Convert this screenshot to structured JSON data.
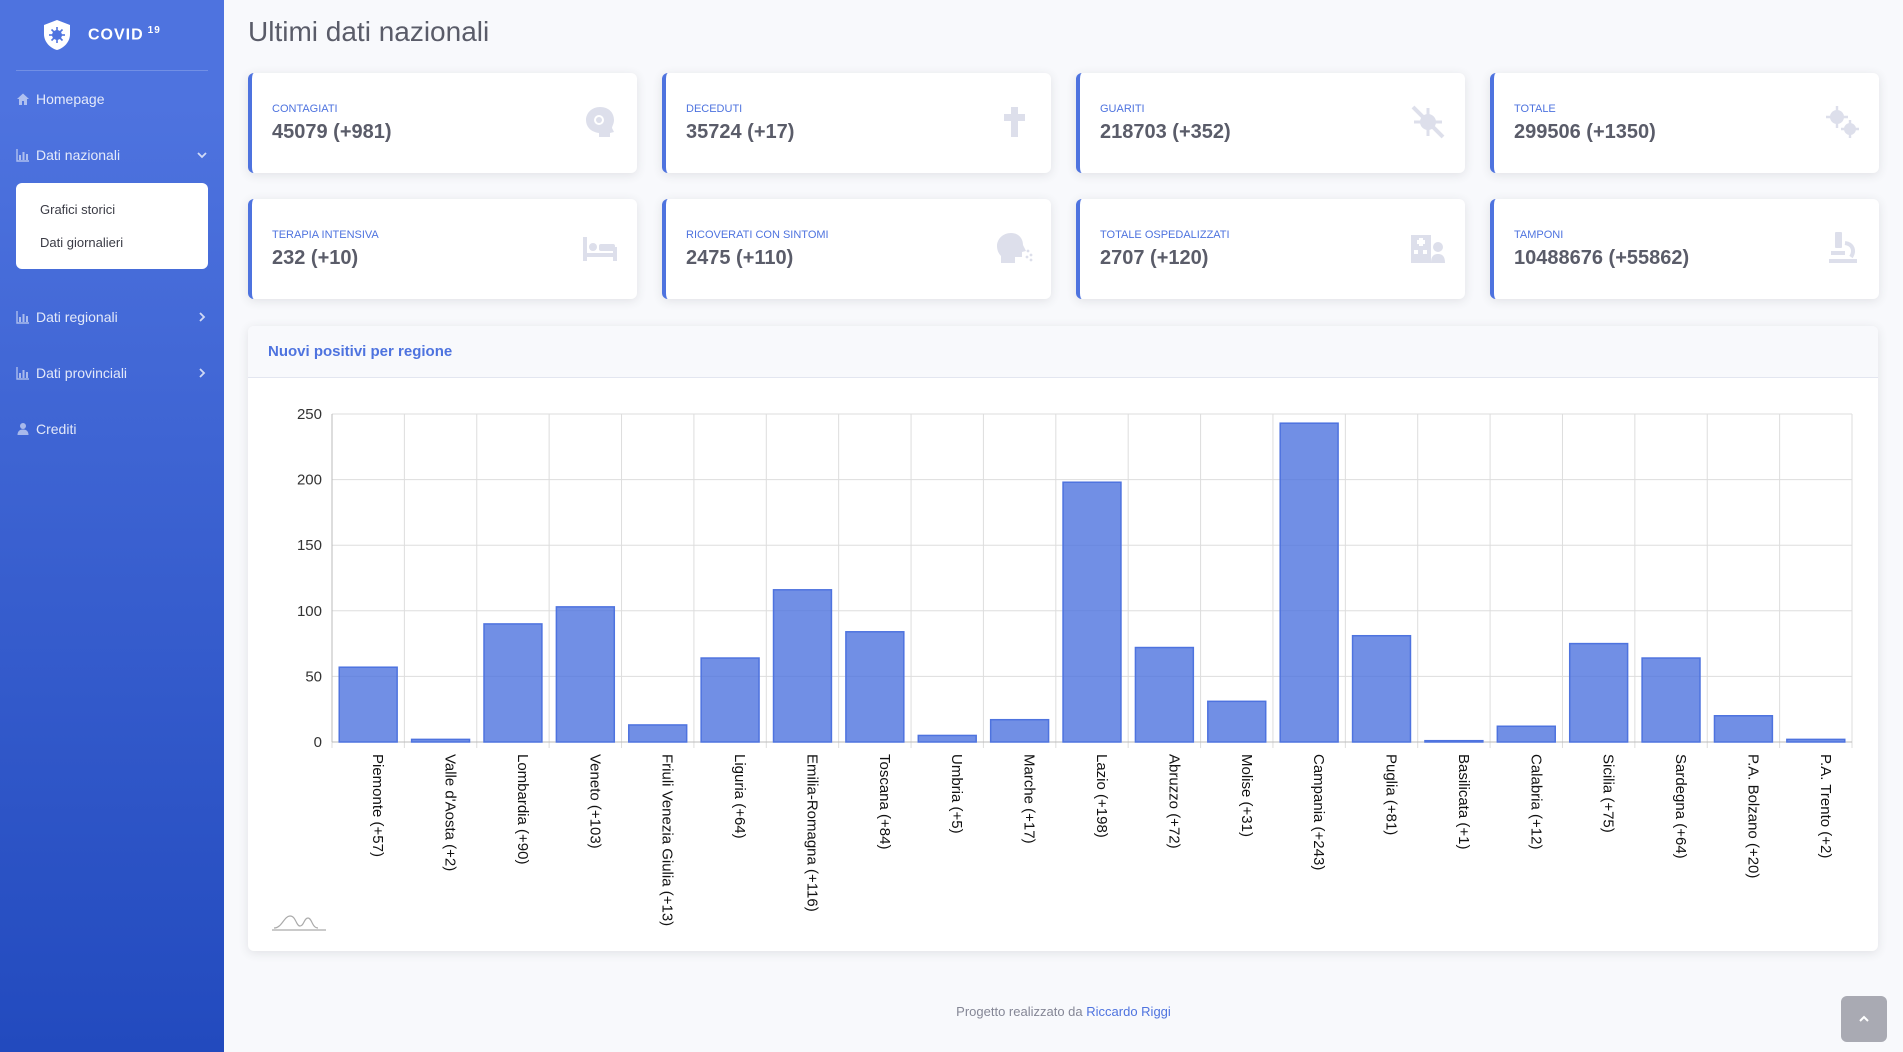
{
  "sidebar": {
    "brand": "COVID",
    "brand_sup": "19",
    "homepage": "Homepage",
    "nazionali": "Dati nazionali",
    "sub_items": [
      "Grafici storici",
      "Dati giornalieri"
    ],
    "regionali": "Dati regionali",
    "provinciali": "Dati provinciali",
    "crediti": "Crediti"
  },
  "page": {
    "title": "Ultimi dati nazionali"
  },
  "stats": [
    {
      "label": "Contagiati",
      "value": "45079 (+981)",
      "icon": "virus-head-icon"
    },
    {
      "label": "Deceduti",
      "value": "35724 (+17)",
      "icon": "cross-icon"
    },
    {
      "label": "Guariti",
      "value": "218703 (+352)",
      "icon": "virus-slash-icon"
    },
    {
      "label": "Totale",
      "value": "299506 (+1350)",
      "icon": "viruses-icon"
    },
    {
      "label": "Terapia intensiva",
      "value": "232 (+10)",
      "icon": "bed-icon"
    },
    {
      "label": "Ricoverati con sintomi",
      "value": "2475 (+110)",
      "icon": "head-cough-icon"
    },
    {
      "label": "Totale ospedalizzati",
      "value": "2707 (+120)",
      "icon": "hospital-user-icon"
    },
    {
      "label": "Tamponi",
      "value": "10488676 (+55862)",
      "icon": "microscope-icon"
    }
  ],
  "chart_title": "Nuovi positivi per regione",
  "chart_data": {
    "type": "bar",
    "title": "Nuovi positivi per regione",
    "categories": [
      "Piemonte (+57)",
      "Valle d'Aosta (+2)",
      "Lombardia (+90)",
      "Veneto (+103)",
      "Friuli Venezia Giulia (+13)",
      "Liguria (+64)",
      "Emilia-Romagna (+116)",
      "Toscana (+84)",
      "Umbria (+5)",
      "Marche (+17)",
      "Lazio (+198)",
      "Abruzzo (+72)",
      "Molise (+31)",
      "Campania (+243)",
      "Puglia (+81)",
      "Basilicata (+1)",
      "Calabria (+12)",
      "Sicilia (+75)",
      "Sardegna (+64)",
      "P.A. Bolzano (+20)",
      "P.A. Trento (+2)"
    ],
    "values": [
      57,
      2,
      90,
      103,
      13,
      64,
      116,
      84,
      5,
      17,
      198,
      72,
      31,
      243,
      81,
      1,
      12,
      75,
      64,
      20,
      2
    ],
    "ylim": [
      0,
      250
    ],
    "yticks": [
      0,
      50,
      100,
      150,
      200,
      250
    ],
    "xlabel": "",
    "ylabel": "",
    "grid": true,
    "bar_color": "#4e73df"
  },
  "footer": {
    "text": "Progetto realizzato da",
    "author": "Riccardo Riggi"
  }
}
